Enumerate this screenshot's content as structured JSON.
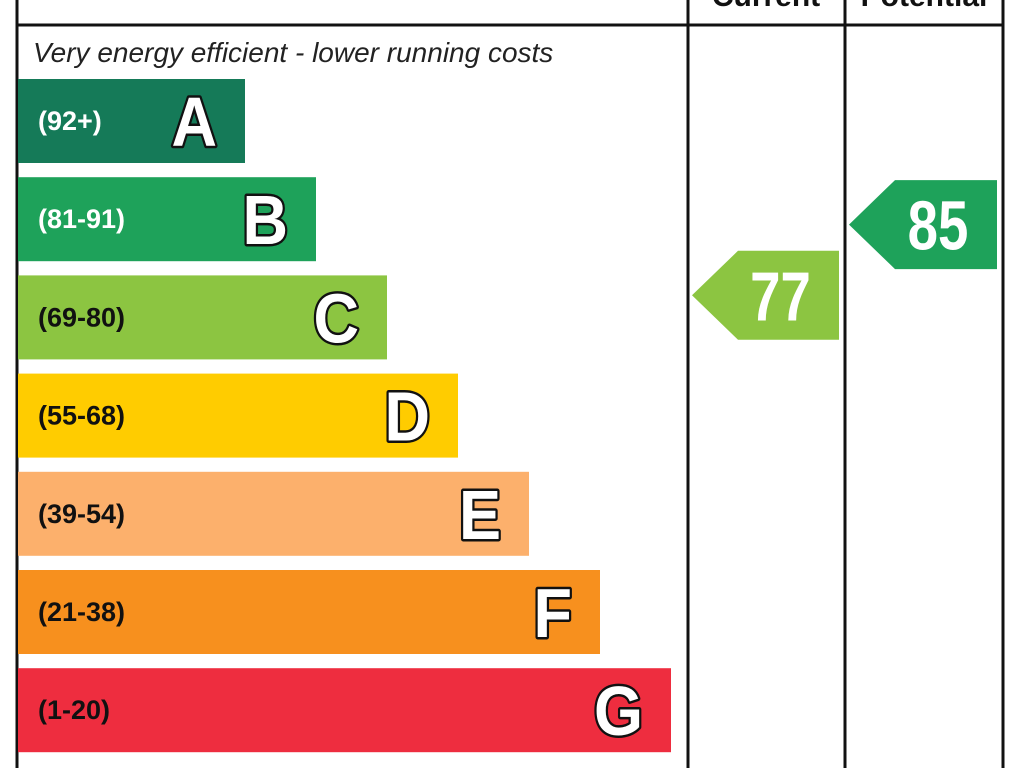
{
  "chart_data": {
    "type": "bar",
    "columns": {
      "current": "Current",
      "potential": "Potential"
    },
    "annotation": "Very energy efficient - lower running costs",
    "bands": [
      {
        "letter": "A",
        "range": "(92+)",
        "color": "#157a58",
        "label_color": "#ffffff"
      },
      {
        "letter": "B",
        "range": "(81-91)",
        "color": "#1ea25a",
        "label_color": "#ffffff"
      },
      {
        "letter": "C",
        "range": "(69-80)",
        "color": "#8cc541",
        "label_color": "#111111"
      },
      {
        "letter": "D",
        "range": "(55-68)",
        "color": "#ffcc00",
        "label_color": "#111111"
      },
      {
        "letter": "E",
        "range": "(39-54)",
        "color": "#fcb06c",
        "label_color": "#111111"
      },
      {
        "letter": "F",
        "range": "(21-38)",
        "color": "#f7901e",
        "label_color": "#111111"
      },
      {
        "letter": "G",
        "range": "(1-20)",
        "color": "#ee2d3f",
        "label_color": "#111111"
      }
    ],
    "current": {
      "value": 77,
      "color": "#8cc541"
    },
    "potential": {
      "value": 85,
      "color": "#1ea25a"
    }
  }
}
